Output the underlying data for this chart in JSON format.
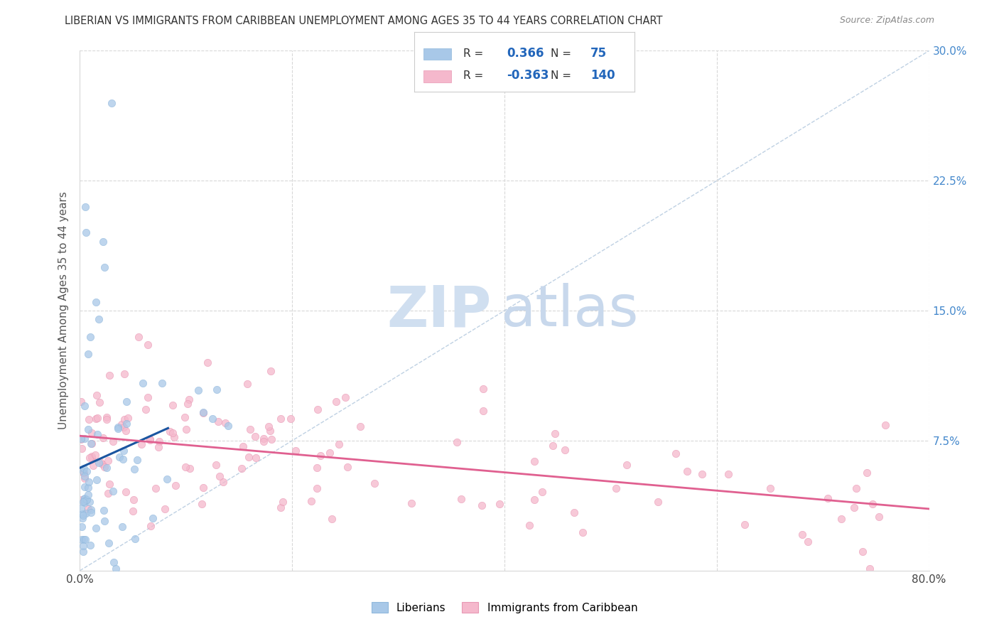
{
  "title": "LIBERIAN VS IMMIGRANTS FROM CARIBBEAN UNEMPLOYMENT AMONG AGES 35 TO 44 YEARS CORRELATION CHART",
  "source": "Source: ZipAtlas.com",
  "ylabel": "Unemployment Among Ages 35 to 44 years",
  "xlim": [
    0.0,
    0.8
  ],
  "ylim": [
    0.0,
    0.3
  ],
  "xtick_positions": [
    0.0,
    0.2,
    0.4,
    0.6,
    0.8
  ],
  "xticklabels": [
    "0.0%",
    "",
    "",
    "",
    "80.0%"
  ],
  "ytick_positions": [
    0.0,
    0.075,
    0.15,
    0.225,
    0.3
  ],
  "yticklabels_right": [
    "",
    "7.5%",
    "15.0%",
    "22.5%",
    "30.0%"
  ],
  "legend_R1": "0.366",
  "legend_N1": "75",
  "legend_R2": "-0.363",
  "legend_N2": "140",
  "liberian_color": "#a8c8e8",
  "caribbean_color": "#f5b8cc",
  "liberian_edge_color": "#90b8dc",
  "caribbean_edge_color": "#e898b4",
  "liberian_line_color": "#1a55a0",
  "caribbean_line_color": "#e06090",
  "diagonal_line_color": "#b8cce0",
  "watermark_zip_color": "#d0dff0",
  "watermark_atlas_color": "#c8d8ec",
  "right_tick_color": "#4488cc",
  "background_color": "#ffffff",
  "grid_color": "#d8d8d8",
  "title_color": "#333333",
  "ylabel_color": "#555555",
  "source_color": "#888888",
  "legend_text_color": "#333333",
  "legend_value_color": "#2266bb"
}
